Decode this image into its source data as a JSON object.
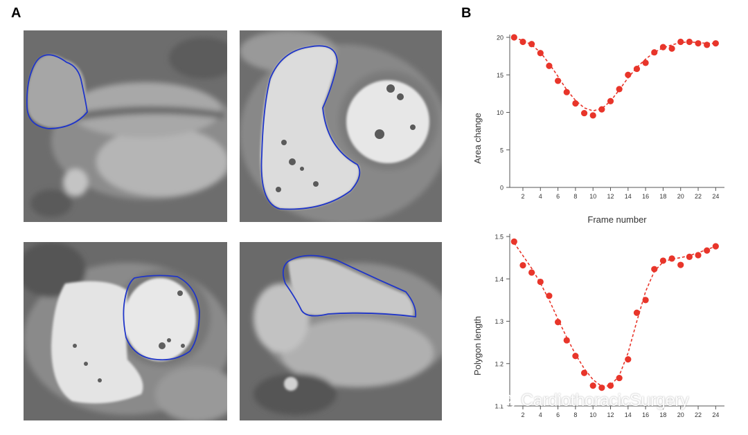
{
  "figure": {
    "panel_a_label": "A",
    "panel_b_label": "B",
    "watermark_text": "CardiothoracicSurgery",
    "watermark_icon": "wechat-icon"
  },
  "colors": {
    "contour": "#1f35c9",
    "series": "#e8352a",
    "axis": "#555555"
  },
  "chart_data": [
    {
      "type": "scatter",
      "title": "",
      "xlabel": "Frame number",
      "ylabel": "Area change",
      "xlim": [
        0.5,
        25
      ],
      "ylim": [
        0,
        20
      ],
      "xticks": [
        2,
        4,
        6,
        8,
        10,
        12,
        14,
        16,
        18,
        20,
        22,
        24
      ],
      "yticks": [
        0,
        5,
        10,
        15,
        20
      ],
      "show_x_tick_labels": true,
      "grid": false,
      "legend": "none",
      "fit_line": "dashed",
      "x": [
        1,
        2,
        3,
        4,
        5,
        6,
        7,
        8,
        9,
        10,
        11,
        12,
        13,
        14,
        15,
        16,
        17,
        18,
        19,
        20,
        21,
        22,
        23,
        24
      ],
      "y": [
        20.0,
        19.4,
        19.1,
        17.9,
        16.2,
        14.2,
        12.7,
        11.2,
        9.9,
        9.6,
        10.4,
        11.5,
        13.1,
        15.0,
        15.8,
        16.6,
        18.0,
        18.7,
        18.5,
        19.4,
        19.4,
        19.2,
        19.0,
        19.2
      ],
      "fit_y": [
        19.9,
        19.6,
        19.0,
        18.0,
        16.5,
        14.8,
        13.0,
        11.6,
        10.6,
        10.2,
        10.5,
        11.5,
        13.0,
        14.6,
        16.0,
        17.1,
        18.0,
        18.6,
        19.0,
        19.3,
        19.4,
        19.3,
        19.2,
        19.2
      ]
    },
    {
      "type": "scatter",
      "title": "",
      "xlabel": "",
      "ylabel": "Polygon length",
      "xlim": [
        0.5,
        25
      ],
      "ylim": [
        1.1,
        1.5
      ],
      "xticks": [
        2,
        4,
        6,
        8,
        10,
        12,
        14,
        16,
        18,
        20,
        22,
        24
      ],
      "yticks": [
        1.1,
        1.2,
        1.3,
        1.4,
        1.5
      ],
      "show_x_tick_labels": true,
      "grid": false,
      "legend": "none",
      "fit_line": "dashed",
      "x": [
        1,
        2,
        3,
        4,
        5,
        6,
        7,
        8,
        9,
        10,
        11,
        12,
        13,
        14,
        15,
        16,
        17,
        18,
        19,
        20,
        21,
        22,
        23,
        24
      ],
      "y": [
        1.488,
        1.432,
        1.415,
        1.393,
        1.36,
        1.298,
        1.255,
        1.218,
        1.178,
        1.148,
        1.143,
        1.148,
        1.166,
        1.21,
        1.32,
        1.35,
        1.423,
        1.443,
        1.448,
        1.433,
        1.452,
        1.456,
        1.467,
        1.477
      ],
      "fit_y": [
        1.485,
        1.455,
        1.425,
        1.39,
        1.35,
        1.305,
        1.262,
        1.222,
        1.188,
        1.162,
        1.146,
        1.148,
        1.172,
        1.225,
        1.3,
        1.37,
        1.418,
        1.44,
        1.447,
        1.45,
        1.455,
        1.462,
        1.469,
        1.477
      ]
    }
  ]
}
